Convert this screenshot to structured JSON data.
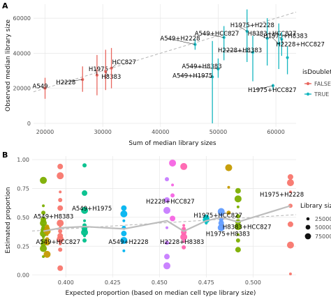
{
  "colors": {
    "false": "#e8675f",
    "true": "#17b7c0",
    "grid": "#e6e6e6",
    "dashed": "#b3b3b3",
    "line": "#bdbdbd",
    "palette": [
      "#7cae00",
      "#c49a00",
      "#f8766d",
      "#00c08b",
      "#00b4f0",
      "#c77cff",
      "#f564e3",
      "#ff64b0",
      "#00bfc4",
      "#619cff"
    ]
  },
  "panel_a": {
    "letter": "A",
    "xlabel": "Sum of median library sizes",
    "ylabel": "Observed median library size",
    "legend_title": "isDoublet",
    "legend_items": [
      "FALSE",
      "TRUE"
    ]
  },
  "panel_b": {
    "letter": "B",
    "xlabel": "Expected proportion (based on median cell type library size)",
    "ylabel": "Estimated proportion",
    "legend_title": "Library size",
    "legend_items": [
      "25000",
      "50000",
      "75000"
    ]
  },
  "chart_data": [
    {
      "type": "scatter",
      "xlabel": "Sum of median library sizes",
      "ylabel": "Observed median library size",
      "xlim": [
        18000,
        63500
      ],
      "ylim": [
        -2000,
        68000
      ],
      "xticks": [
        "20000",
        "30000",
        "40000",
        "50000",
        "60000"
      ],
      "yticks": [
        "0",
        "20000",
        "40000",
        "60000"
      ],
      "grid": true,
      "legend_position": "right",
      "reference_line": {
        "style": "dashed",
        "slope": 1,
        "intercept": 0
      },
      "series": [
        {
          "name": "FALSE",
          "points": [
            {
              "label": "A549",
              "x": 20000,
              "y": 20000,
              "ymin": 14000,
              "ymax": 26000
            },
            {
              "label": "H2228",
              "x": 26500,
              "y": 25000,
              "ymin": 18000,
              "ymax": 32500
            },
            {
              "label": "H1975",
              "x": 29000,
              "y": 27500,
              "ymin": 16000,
              "ymax": 39000
            },
            {
              "label": "H8383",
              "x": 30500,
              "y": 29500,
              "ymin": 19000,
              "ymax": 42000
            },
            {
              "label": "HCC827",
              "x": 31500,
              "y": 31500,
              "ymin": 20000,
              "ymax": 43000
            }
          ]
        },
        {
          "name": "TRUE",
          "points": [
            {
              "label": "A549+H2228",
              "x": 46000,
              "y": 45000,
              "ymin": 42000,
              "ymax": 48000
            },
            {
              "label": "A549+H8383",
              "x": 50000,
              "y": 31000,
              "ymin": 26000,
              "ymax": 37000
            },
            {
              "label": "A549+H1975",
              "x": 49000,
              "y": 26500,
              "ymin": 0,
              "ymax": 47000
            },
            {
              "label": "A549+HCC827",
              "x": 51000,
              "y": 49000,
              "ymin": 36000,
              "ymax": 55500
            },
            {
              "label": "H1975+H2228",
              "x": 55000,
              "y": 52500,
              "ymin": 35000,
              "ymax": 65000
            },
            {
              "label": "H2228+H8383",
              "x": 56000,
              "y": 40500,
              "ymin": 24000,
              "ymax": 50000
            },
            {
              "label": "H8383+HCC827",
              "x": 58500,
              "y": 48500,
              "ymin": 33000,
              "ymax": 60000
            },
            {
              "label": "H1975+H8383",
              "x": 60500,
              "y": 45500,
              "ymin": 31000,
              "ymax": 57000
            },
            {
              "label": "H2228+HCC827",
              "x": 61000,
              "y": 48000,
              "ymin": 38500,
              "ymax": 52000
            },
            {
              "label": "H1975+HCC827",
              "x": 59500,
              "y": 21500,
              "ymin": 19000,
              "ymax": 22500
            },
            {
              "label": "",
              "x": 62000,
              "y": 37500,
              "ymin": 28000,
              "ymax": 44000
            }
          ]
        }
      ]
    },
    {
      "type": "scatter",
      "xlabel": "Expected proportion (based on median cell type library size)",
      "ylabel": "Estimated proportion",
      "xlim": [
        0.382,
        0.523
      ],
      "ylim": [
        -0.02,
        1.03
      ],
      "xticks": [
        "0.400",
        "0.425",
        "0.450",
        "0.475",
        "0.500"
      ],
      "yticks": [
        "0.00",
        "0.25",
        "0.50",
        "0.75",
        "1.00"
      ],
      "grid": true,
      "legend_position": "right",
      "size_legend": [
        25000,
        50000,
        75000
      ],
      "reference_line": {
        "style": "dashed",
        "slope": 1,
        "intercept": 0
      },
      "median_line": [
        {
          "x": 0.388,
          "y": 0.38
        },
        {
          "x": 0.398,
          "y": 0.41
        },
        {
          "x": 0.41,
          "y": 0.42
        },
        {
          "x": 0.431,
          "y": 0.4
        },
        {
          "x": 0.454,
          "y": 0.47
        },
        {
          "x": 0.463,
          "y": 0.38
        },
        {
          "x": 0.475,
          "y": 0.47
        },
        {
          "x": 0.483,
          "y": 0.5
        },
        {
          "x": 0.492,
          "y": 0.46
        },
        {
          "x": 0.52,
          "y": 0.6
        }
      ],
      "groups": [
        {
          "label": "A549+H8383",
          "x": 0.388,
          "label_y": 0.49,
          "values": [
            0.16,
            0.23,
            0.27,
            0.3,
            0.33,
            0.36,
            0.39,
            0.41,
            0.43,
            0.45,
            0.48,
            0.54,
            0.6,
            0.82
          ]
        },
        {
          "label": "A549+HCC827",
          "x": 0.39,
          "label_y": 0.27,
          "values": [
            0.18,
            0.28,
            0.31,
            0.35,
            0.38,
            0.4,
            0.42
          ]
        },
        {
          "label": "",
          "x": 0.397,
          "label_y": 0,
          "values": [
            0.06,
            0.22,
            0.27,
            0.31,
            0.34,
            0.38,
            0.41,
            0.45,
            0.58,
            0.65,
            0.72,
            0.86,
            0.94
          ]
        },
        {
          "label": "A549+H1975",
          "x": 0.41,
          "label_y": 0.56,
          "values": [
            0.3,
            0.34,
            0.37,
            0.4,
            0.43,
            0.47,
            0.56,
            0.71,
            0.95
          ]
        },
        {
          "label": "A549+H2228",
          "x": 0.431,
          "label_y": 0.27,
          "values": [
            0.21,
            0.3,
            0.36,
            0.41,
            0.47,
            0.53,
            0.58
          ]
        },
        {
          "label": "H2228+HCC827",
          "x": 0.454,
          "label_y": 0.62,
          "values": [
            0.08,
            0.16,
            0.28,
            0.41,
            0.56,
            0.65,
            0.83
          ]
        },
        {
          "label": "",
          "x": 0.457,
          "label_y": 0,
          "values": [
            0.49,
            0.69,
            0.78,
            0.97
          ]
        },
        {
          "label": "H2228+H8383",
          "x": 0.463,
          "label_y": 0.27,
          "values": [
            0.24,
            0.29,
            0.33,
            0.37,
            0.4,
            0.43,
            0.94
          ]
        },
        {
          "label": "H1975+HCC827",
          "x": 0.475,
          "label_y": 0.5,
          "values": [
            0.45,
            0.48,
            0.5
          ]
        },
        {
          "label": "H1975+H8383",
          "x": 0.483,
          "label_y": 0.34,
          "values": [
            0.41,
            0.45,
            0.48,
            0.52,
            0.55
          ]
        },
        {
          "label": "H8383+HCC827",
          "x": 0.492,
          "label_y": 0.4,
          "values": [
            0.22,
            0.3,
            0.35,
            0.42,
            0.46,
            0.51,
            0.59,
            0.66,
            0.73
          ]
        },
        {
          "label": "",
          "x": 0.487,
          "label_y": 0,
          "values": [
            0.54,
            0.76,
            0.93
          ]
        },
        {
          "label": "H1975+H2228",
          "x": 0.52,
          "label_y": 0.68,
          "values": [
            0.01,
            0.26,
            0.44,
            0.6,
            0.72,
            0.8,
            0.85
          ]
        }
      ]
    }
  ]
}
